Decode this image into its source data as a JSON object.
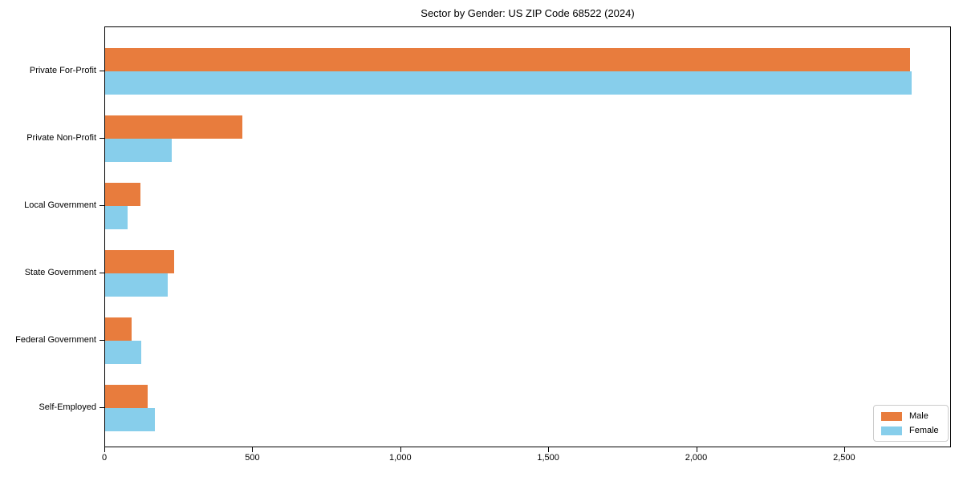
{
  "chart_data": {
    "type": "bar",
    "orientation": "horizontal",
    "title": "Sector by Gender: US ZIP Code 68522 (2024)",
    "categories": [
      "Private For-Profit",
      "Private Non-Profit",
      "Local Government",
      "State Government",
      "Federal Government",
      "Self-Employed"
    ],
    "series": [
      {
        "name": "Male",
        "color": "#E87C3D",
        "values": [
          2720,
          463,
          119,
          233,
          89,
          143
        ]
      },
      {
        "name": "Female",
        "color": "#87CEEB",
        "values": [
          2725,
          224,
          77,
          211,
          122,
          167
        ]
      }
    ],
    "xlabel": "",
    "ylabel": "",
    "xlim": [
      0,
      2861
    ],
    "xticks": [
      0,
      500,
      1000,
      1500,
      2000,
      2500
    ],
    "xtick_labels": [
      "0",
      "500",
      "1,000",
      "1,500",
      "2,000",
      "2,500"
    ],
    "grid": false,
    "axis_color": "#000000",
    "legend": {
      "position": "lower-right",
      "border_color": "#cccccc",
      "background": "#ffffff"
    }
  }
}
